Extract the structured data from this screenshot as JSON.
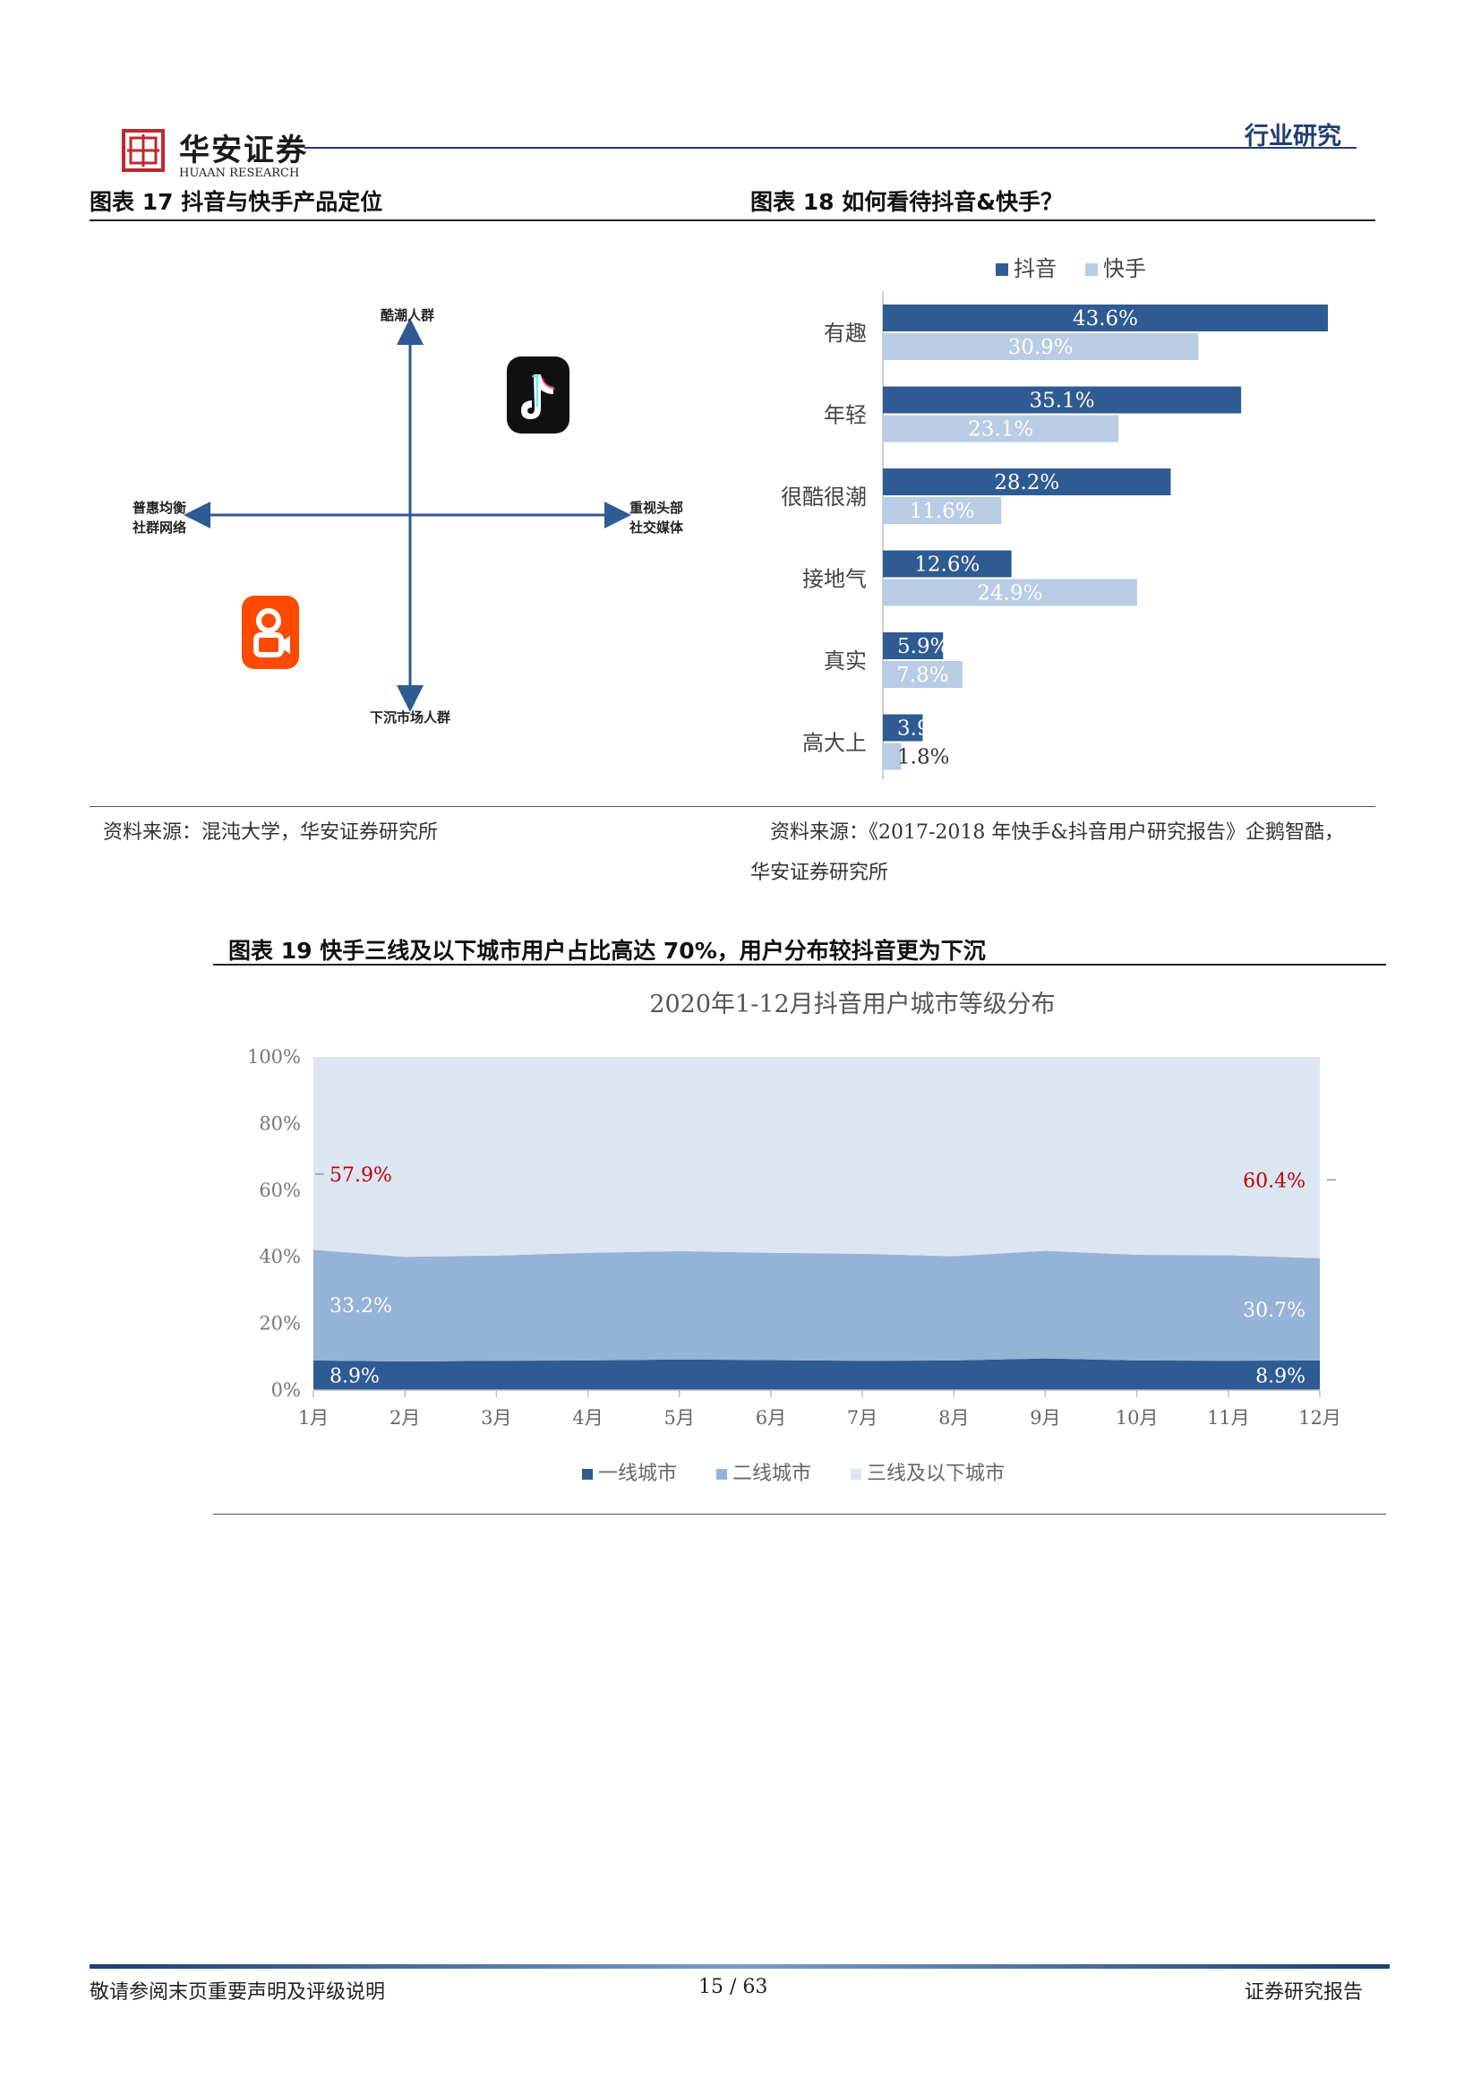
{
  "header": {
    "logo_cn": "华安证券",
    "logo_en": "HUAAN RESEARCH",
    "section": "行业研究",
    "accent": "#1f3f6e",
    "logo_red": "#c0282d"
  },
  "fig17": {
    "title": "图表 17 抖音与快手产品定位",
    "axis_top": "酷潮人群",
    "axis_bottom": "下沉市场人群",
    "axis_left_1": "普惠均衡",
    "axis_left_2": "社群网络",
    "axis_right_1": "重视头部",
    "axis_right_2": "社交媒体",
    "icons": [
      "douyin-logo-icon",
      "kuaishou-logo-icon"
    ],
    "source": "资料来源：混沌大学，华安证券研究所"
  },
  "fig18": {
    "title": "图表 18 如何看待抖音&快手？",
    "source_line1": "资料来源：《2017-2018 年快手&抖音用户研究报告》企鹅智酷，",
    "source_line2": "华安证券研究所"
  },
  "fig19": {
    "title": "图表 19 快手三线及以下城市用户占比高达 70%，用户分布较抖音更为下沉"
  },
  "chart_data": [
    {
      "type": "bar",
      "orientation": "horizontal",
      "categories": [
        "有趣",
        "年轻",
        "很酷很潮",
        "接地气",
        "真实",
        "高大上"
      ],
      "series": [
        {
          "name": "抖音",
          "values": [
            43.6,
            35.1,
            28.2,
            12.6,
            5.9,
            3.9
          ],
          "labels": [
            "43.6%",
            "35.1%",
            "28.2%",
            "12.6%",
            "5.9%",
            "3.9%"
          ],
          "color": "#2f5b93"
        },
        {
          "name": "快手",
          "values": [
            30.9,
            23.1,
            11.6,
            24.9,
            7.8,
            1.8
          ],
          "labels": [
            "30.9%",
            "23.1%",
            "11.6%",
            "24.9%",
            "7.8%",
            "1.8%"
          ],
          "color": "#b8cce4"
        }
      ],
      "xlim": [
        0,
        50
      ],
      "legend": "top"
    },
    {
      "type": "area",
      "stacked": true,
      "title": "2020年1-12月抖音用户城市等级分布",
      "categories": [
        "1月",
        "2月",
        "3月",
        "4月",
        "5月",
        "6月",
        "7月",
        "8月",
        "9月",
        "10月",
        "11月",
        "12月"
      ],
      "y_ticks": [
        "0%",
        "20%",
        "40%",
        "60%",
        "80%",
        "100%"
      ],
      "ylim": [
        0,
        100
      ],
      "series": [
        {
          "name": "一线城市",
          "values": [
            8.9,
            8.6,
            8.8,
            8.9,
            9.2,
            9.0,
            8.8,
            8.9,
            9.5,
            8.9,
            8.8,
            8.9
          ],
          "color": "#2f5b93"
        },
        {
          "name": "二线城市",
          "values": [
            33.2,
            31.4,
            31.6,
            32.3,
            32.5,
            32.2,
            32.1,
            31.3,
            32.3,
            31.7,
            31.7,
            30.7
          ],
          "color": "#94b3d7"
        },
        {
          "name": "三线及以下城市",
          "values": [
            57.9,
            60.0,
            59.6,
            58.8,
            58.3,
            58.8,
            59.1,
            59.8,
            58.2,
            59.4,
            59.5,
            60.4
          ],
          "color": "#dce6f2"
        }
      ],
      "annotations": [
        {
          "series": "三线及以下城市",
          "point": "1月",
          "text": "57.9%"
        },
        {
          "series": "三线及以下城市",
          "point": "12月",
          "text": "60.4%"
        },
        {
          "series": "二线城市",
          "point": "1月",
          "text": "33.2%"
        },
        {
          "series": "二线城市",
          "point": "12月",
          "text": "30.7%"
        },
        {
          "series": "一线城市",
          "point": "1月",
          "text": "8.9%"
        },
        {
          "series": "一线城市",
          "point": "12月",
          "text": "8.9%"
        }
      ],
      "annotation_color": "#c00000",
      "legend": "bottom"
    }
  ],
  "footer": {
    "disclaimer": "敬请参阅末页重要声明及评级说明",
    "page": "15 / 63",
    "report_type": "证券研究报告"
  }
}
